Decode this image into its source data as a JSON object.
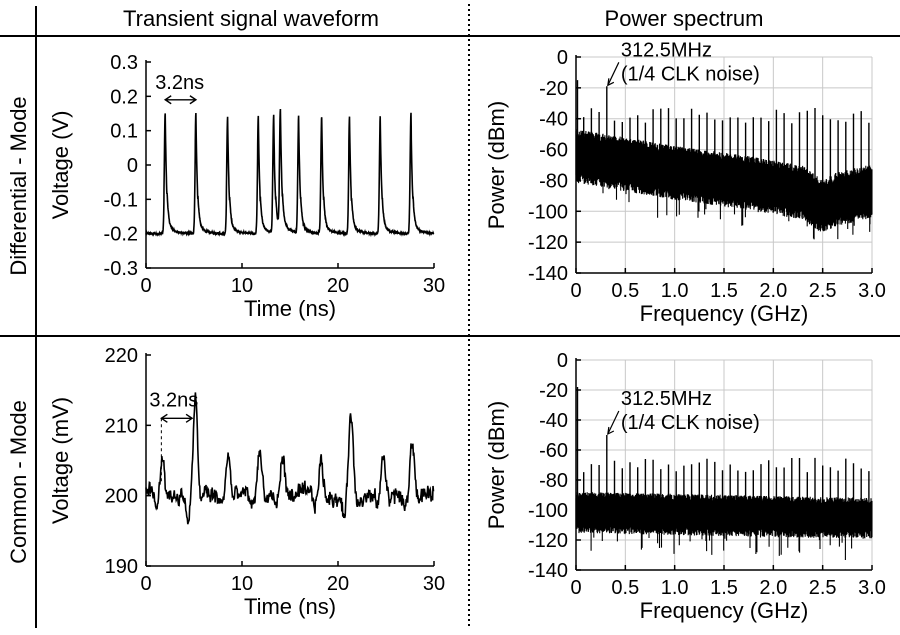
{
  "headers": {
    "left": "Transient signal waveform",
    "right": "Power spectrum"
  },
  "rows": {
    "top": "Differential - Mode",
    "bottom": "Common - Mode"
  },
  "chart_data": [
    {
      "id": "diff_time",
      "type": "line",
      "xlabel": "Time (ns)",
      "ylabel": "Voltage (V)",
      "xlim": [
        0,
        30
      ],
      "ylim": [
        -0.3,
        0.3
      ],
      "xticks": [
        0,
        10,
        20,
        30
      ],
      "yticks": [
        -0.3,
        -0.2,
        -0.1,
        0,
        0.1,
        0.2,
        0.3
      ],
      "ytick_labels": [
        "-0.3",
        "-0.2",
        "-0.1",
        "0",
        "0.1",
        "0.2",
        "0.3"
      ],
      "grid": false,
      "baseline": -0.2,
      "pulses": [
        {
          "t": 2.0,
          "peak": 0.15
        },
        {
          "t": 5.2,
          "peak": 0.15
        },
        {
          "t": 8.5,
          "peak": 0.14
        },
        {
          "t": 11.7,
          "peak": 0.14
        },
        {
          "t": 13.3,
          "peak": 0.14
        },
        {
          "t": 14.0,
          "peak": 0.15
        },
        {
          "t": 15.9,
          "peak": 0.14
        },
        {
          "t": 18.3,
          "peak": 0.14
        },
        {
          "t": 21.2,
          "peak": 0.14
        },
        {
          "t": 24.4,
          "peak": 0.14
        },
        {
          "t": 27.6,
          "peak": 0.15
        }
      ],
      "annotation": {
        "text": "3.2ns",
        "x1": 2.0,
        "x2": 5.2,
        "y": 0.19
      }
    },
    {
      "id": "diff_spec",
      "type": "line",
      "xlabel": "Frequency (GHz)",
      "ylabel": "Power (dBm)",
      "xlim": [
        0,
        3.0
      ],
      "ylim": [
        -140,
        0
      ],
      "xticks": [
        0,
        0.5,
        1.0,
        1.5,
        2.0,
        2.5,
        3.0
      ],
      "xtick_labels": [
        "0",
        "0.5",
        "1.0",
        "1.5",
        "2.0",
        "2.5",
        "3.0"
      ],
      "yticks": [
        0,
        -20,
        -40,
        -60,
        -80,
        -100,
        -120,
        -140
      ],
      "grid": true,
      "floor_profile": [
        [
          0,
          -62
        ],
        [
          1.0,
          -73
        ],
        [
          1.8,
          -80
        ],
        [
          2.3,
          -86
        ],
        [
          2.5,
          -95
        ],
        [
          2.65,
          -90
        ],
        [
          3.0,
          -85
        ]
      ],
      "spread_db": 28,
      "spur_spacing_ghz": 0.078125,
      "spurs": [
        [
          0,
          -15
        ],
        [
          0.3125,
          -19
        ]
      ],
      "spur_height": -38,
      "annotation": {
        "text1": "312.5MHz",
        "text2": "(1/4 CLK noise)",
        "x": 0.3125,
        "y": -19
      }
    },
    {
      "id": "common_time",
      "type": "line",
      "xlabel": "Time (ns)",
      "ylabel": "Voltage (mV)",
      "xlim": [
        0,
        30
      ],
      "ylim": [
        190,
        220
      ],
      "xticks": [
        0,
        10,
        20,
        30
      ],
      "yticks": [
        190,
        200,
        210,
        220
      ],
      "grid": false,
      "baseline": 200,
      "events": [
        {
          "t": 1.6,
          "amp": 5
        },
        {
          "t": 5.0,
          "amp": 12
        },
        {
          "t": 8.4,
          "amp": 5
        },
        {
          "t": 11.7,
          "amp": 6
        },
        {
          "t": 14.1,
          "amp": 5
        },
        {
          "t": 18.1,
          "amp": 4
        },
        {
          "t": 21.2,
          "amp": 11
        },
        {
          "t": 24.6,
          "amp": 5
        },
        {
          "t": 27.6,
          "amp": 7
        }
      ],
      "annotation": {
        "text": "3.2ns",
        "x1": 1.6,
        "x2": 4.8,
        "y": 211
      }
    },
    {
      "id": "common_spec",
      "type": "line",
      "xlabel": "Frequency (GHz)",
      "ylabel": "Power (dBm)",
      "xlim": [
        0,
        3.0
      ],
      "ylim": [
        -140,
        0
      ],
      "xticks": [
        0,
        0.5,
        1.0,
        1.5,
        2.0,
        2.5,
        3.0
      ],
      "xtick_labels": [
        "0",
        "0.5",
        "1.0",
        "1.5",
        "2.0",
        "2.5",
        "3.0"
      ],
      "yticks": [
        0,
        -20,
        -40,
        -60,
        -80,
        -100,
        -120,
        -140
      ],
      "grid": true,
      "floor_profile": [
        [
          0,
          -100
        ],
        [
          3.0,
          -104
        ]
      ],
      "spread_db": 22,
      "spur_spacing_ghz": 0.078125,
      "spurs": [
        [
          0,
          -18
        ],
        [
          0.3125,
          -50
        ]
      ],
      "spur_height": -70,
      "annotation": {
        "text1": "312.5MHz",
        "text2": "(1/4 CLK noise)",
        "x": 0.3125,
        "y": -50
      }
    }
  ]
}
